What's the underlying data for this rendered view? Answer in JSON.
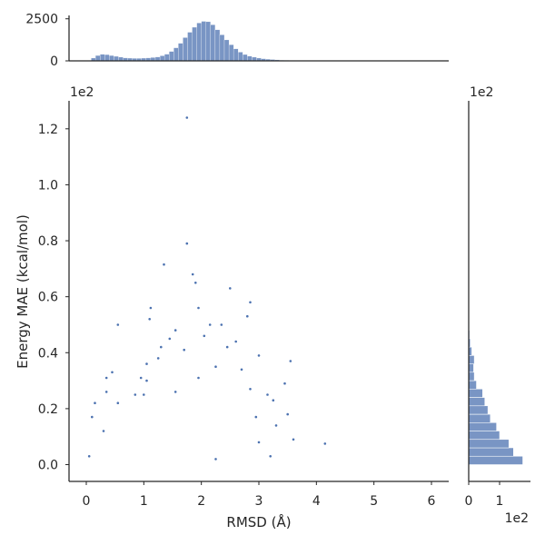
{
  "chart_data": {
    "type": "scatter",
    "xlabel": "RMSD (Å)",
    "ylabel": "Energy MAE (kcal/mol)",
    "xlim": [
      -0.3,
      6.3
    ],
    "ylim": [
      -0.06,
      1.3
    ],
    "x_ticks": [
      "0",
      "1",
      "2",
      "3",
      "4",
      "5",
      "6"
    ],
    "y_ticks": [
      "0.0",
      "0.2",
      "0.4",
      "0.6",
      "0.8",
      "1.0",
      "1.2"
    ],
    "y_offset_label": "1e2",
    "grid": false,
    "legend": "none",
    "color": "#4c72b0",
    "points": [
      [
        1.75,
        1.24
      ],
      [
        1.75,
        0.79
      ],
      [
        1.35,
        0.715
      ],
      [
        1.85,
        0.68
      ],
      [
        1.9,
        0.65
      ],
      [
        2.5,
        0.63
      ],
      [
        2.85,
        0.58
      ],
      [
        1.12,
        0.56
      ],
      [
        1.95,
        0.56
      ],
      [
        0.55,
        0.5
      ],
      [
        1.1,
        0.52
      ],
      [
        2.15,
        0.5
      ],
      [
        2.35,
        0.5
      ],
      [
        2.8,
        0.53
      ],
      [
        1.55,
        0.48
      ],
      [
        1.45,
        0.45
      ],
      [
        1.3,
        0.42
      ],
      [
        2.05,
        0.46
      ],
      [
        2.6,
        0.44
      ],
      [
        1.25,
        0.38
      ],
      [
        3.0,
        0.39
      ],
      [
        3.55,
        0.37
      ],
      [
        1.05,
        0.36
      ],
      [
        1.7,
        0.41
      ],
      [
        2.45,
        0.42
      ],
      [
        0.45,
        0.33
      ],
      [
        0.35,
        0.31
      ],
      [
        0.95,
        0.31
      ],
      [
        1.05,
        0.3
      ],
      [
        2.7,
        0.34
      ],
      [
        0.85,
        0.25
      ],
      [
        0.15,
        0.22
      ],
      [
        0.35,
        0.26
      ],
      [
        0.55,
        0.22
      ],
      [
        1.0,
        0.25
      ],
      [
        1.55,
        0.26
      ],
      [
        1.95,
        0.31
      ],
      [
        2.25,
        0.35
      ],
      [
        2.85,
        0.27
      ],
      [
        3.45,
        0.29
      ],
      [
        3.15,
        0.25
      ],
      [
        3.25,
        0.23
      ],
      [
        3.5,
        0.18
      ],
      [
        3.3,
        0.14
      ],
      [
        2.95,
        0.17
      ],
      [
        3.0,
        0.08
      ],
      [
        3.6,
        0.09
      ],
      [
        4.15,
        0.075
      ],
      [
        2.25,
        0.02
      ],
      [
        3.2,
        0.03
      ],
      [
        0.05,
        0.03
      ],
      [
        0.1,
        0.17
      ],
      [
        0.3,
        0.12
      ]
    ],
    "marginal_top": {
      "type": "histogram",
      "y_ticks": [
        "0",
        "2500"
      ],
      "ylim": [
        0,
        2700
      ],
      "bins": [
        [
          0.05,
          20
        ],
        [
          0.12,
          170
        ],
        [
          0.2,
          320
        ],
        [
          0.28,
          390
        ],
        [
          0.36,
          370
        ],
        [
          0.44,
          320
        ],
        [
          0.52,
          270
        ],
        [
          0.6,
          220
        ],
        [
          0.68,
          180
        ],
        [
          0.76,
          160
        ],
        [
          0.84,
          150
        ],
        [
          0.92,
          150
        ],
        [
          1.0,
          160
        ],
        [
          1.08,
          180
        ],
        [
          1.16,
          200
        ],
        [
          1.24,
          230
        ],
        [
          1.32,
          300
        ],
        [
          1.4,
          400
        ],
        [
          1.48,
          560
        ],
        [
          1.56,
          780
        ],
        [
          1.64,
          1050
        ],
        [
          1.72,
          1380
        ],
        [
          1.8,
          1700
        ],
        [
          1.88,
          2000
        ],
        [
          1.96,
          2250
        ],
        [
          2.04,
          2350
        ],
        [
          2.12,
          2330
        ],
        [
          2.2,
          2150
        ],
        [
          2.28,
          1850
        ],
        [
          2.36,
          1550
        ],
        [
          2.44,
          1250
        ],
        [
          2.52,
          960
        ],
        [
          2.6,
          720
        ],
        [
          2.68,
          520
        ],
        [
          2.76,
          380
        ],
        [
          2.84,
          280
        ],
        [
          2.92,
          220
        ],
        [
          3.0,
          170
        ],
        [
          3.08,
          130
        ],
        [
          3.16,
          100
        ],
        [
          3.24,
          80
        ],
        [
          3.32,
          60
        ],
        [
          3.4,
          45
        ],
        [
          3.48,
          35
        ],
        [
          3.56,
          25
        ],
        [
          3.64,
          15
        ],
        [
          3.72,
          10
        ],
        [
          3.8,
          8
        ],
        [
          3.9,
          5
        ],
        [
          4.0,
          3
        ],
        [
          4.2,
          2
        ]
      ]
    },
    "marginal_right": {
      "type": "histogram",
      "orientation": "horizontal",
      "x_ticks": [
        "0",
        "1"
      ],
      "x_offset_label": "1e2",
      "xlim": [
        0,
        2.0
      ],
      "bins": [
        [
          0.015,
          1.75
        ],
        [
          0.045,
          1.45
        ],
        [
          0.075,
          1.3
        ],
        [
          0.105,
          1.0
        ],
        [
          0.135,
          0.9
        ],
        [
          0.165,
          0.7
        ],
        [
          0.195,
          0.62
        ],
        [
          0.225,
          0.52
        ],
        [
          0.255,
          0.45
        ],
        [
          0.285,
          0.25
        ],
        [
          0.315,
          0.18
        ],
        [
          0.345,
          0.16
        ],
        [
          0.375,
          0.18
        ],
        [
          0.405,
          0.1
        ],
        [
          0.435,
          0.05
        ],
        [
          0.465,
          0.03
        ],
        [
          0.495,
          0.02
        ],
        [
          0.525,
          0.01
        ]
      ]
    }
  }
}
